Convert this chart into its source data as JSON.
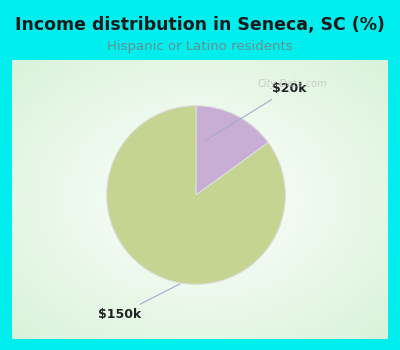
{
  "title": "Income distribution in Seneca, SC (%)",
  "subtitle": "Hispanic or Latino residents",
  "title_color": "#1a1a1a",
  "subtitle_color": "#6b8e8e",
  "background_outer": "#00EEEE",
  "slices": [
    {
      "label": "$20k",
      "value": 15.0,
      "color": "#c8aed4"
    },
    {
      "label": "$150k",
      "value": 85.0,
      "color": "#c5d490"
    }
  ],
  "figsize": [
    4.0,
    3.5
  ],
  "dpi": 100
}
